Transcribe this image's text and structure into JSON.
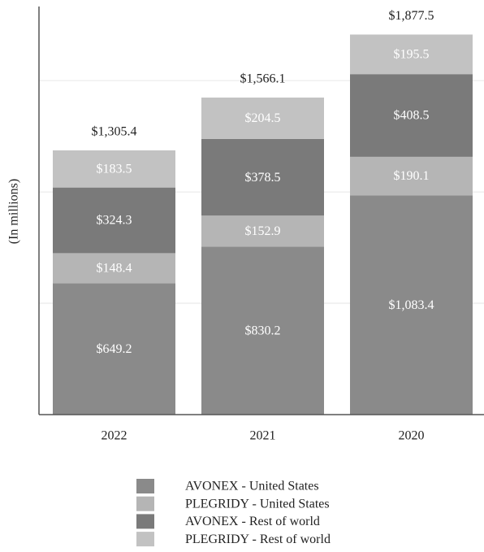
{
  "chart_data": {
    "type": "stacked-bar",
    "y_label": "(In millions)",
    "categories": [
      "2022",
      "2021",
      "2020"
    ],
    "series": [
      {
        "name": "AVONEX - United States",
        "color": "#8a8a8a",
        "values": [
          649.2,
          830.2,
          1083.4
        ],
        "value_labels": [
          "$649.2",
          "$830.2",
          "$1,083.4"
        ]
      },
      {
        "name": "PLEGRIDY - United States",
        "color": "#b5b5b5",
        "values": [
          148.4,
          152.9,
          190.1
        ],
        "value_labels": [
          "$148.4",
          "$152.9",
          "$190.1"
        ]
      },
      {
        "name": "AVONEX - Rest of world",
        "color": "#7a7a7a",
        "values": [
          324.3,
          378.5,
          408.5
        ],
        "value_labels": [
          "$324.3",
          "$378.5",
          "$408.5"
        ]
      },
      {
        "name": "PLEGRIDY - Rest of world",
        "color": "#c2c2c2",
        "values": [
          183.5,
          204.5,
          195.5
        ],
        "value_labels": [
          "$183.5",
          "$204.5",
          "$195.5"
        ]
      }
    ],
    "totals": [
      1305.4,
      1566.1,
      1877.5
    ],
    "total_labels": [
      "$1,305.4",
      "$1,566.1",
      "$1,877.5"
    ],
    "ylim": [
      0,
      2000
    ],
    "yticks": [
      0,
      550,
      1100,
      1650
    ],
    "grid": true
  }
}
